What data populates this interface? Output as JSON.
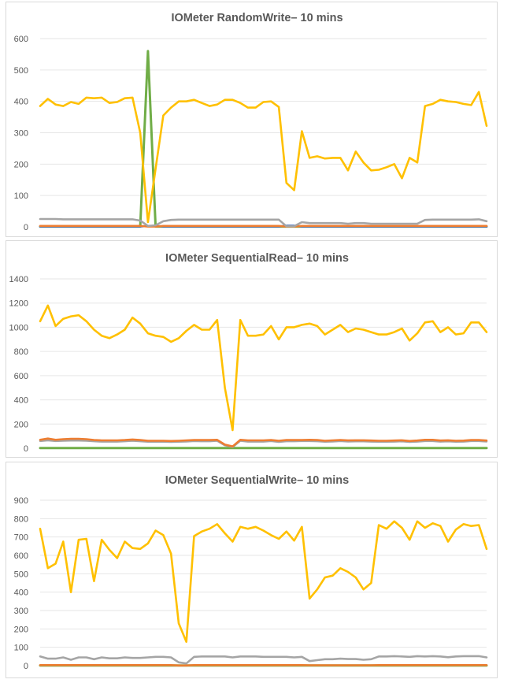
{
  "chart_data": [
    {
      "type": "line",
      "title": "IOMeter RandomWrite– 10 mins",
      "ylim": [
        0,
        600
      ],
      "yticks": [
        0,
        100,
        200,
        300,
        400,
        500,
        600
      ],
      "grid": true,
      "series": [
        {
          "color": "#ffc000",
          "values": [
            385,
            408,
            390,
            385,
            398,
            392,
            412,
            410,
            412,
            395,
            398,
            410,
            412,
            300,
            15,
            185,
            355,
            380,
            400,
            400,
            405,
            395,
            385,
            390,
            405,
            405,
            395,
            380,
            380,
            398,
            400,
            382,
            140,
            117,
            305,
            220,
            225,
            218,
            220,
            220,
            180,
            240,
            205,
            180,
            182,
            190,
            200,
            155,
            220,
            205,
            385,
            392,
            405,
            400,
            398,
            392,
            388,
            430,
            322
          ]
        },
        {
          "color": "#a5a5a5",
          "values": [
            25,
            25,
            25,
            24,
            24,
            24,
            24,
            24,
            24,
            24,
            24,
            24,
            24,
            20,
            3,
            5,
            18,
            22,
            23,
            23,
            23,
            23,
            23,
            23,
            23,
            23,
            23,
            23,
            23,
            23,
            23,
            23,
            2,
            2,
            15,
            12,
            12,
            12,
            12,
            12,
            10,
            12,
            12,
            10,
            10,
            10,
            10,
            10,
            10,
            10,
            22,
            23,
            23,
            23,
            23,
            23,
            23,
            24,
            18
          ]
        },
        {
          "color": "#ed7d31",
          "values": [
            3,
            3,
            3,
            3,
            3,
            3,
            3,
            3,
            3,
            3,
            3,
            3,
            3,
            3,
            1,
            1,
            3,
            3,
            3,
            3,
            3,
            3,
            3,
            3,
            3,
            3,
            3,
            3,
            3,
            3,
            3,
            3,
            1,
            1,
            3,
            3,
            3,
            3,
            3,
            3,
            3,
            3,
            3,
            3,
            3,
            3,
            3,
            3,
            3,
            3,
            3,
            3,
            3,
            3,
            3,
            3,
            3,
            3,
            3
          ]
        },
        {
          "color": "#4472c4",
          "values": [
            1,
            1,
            1,
            1,
            1,
            1,
            1,
            1,
            1,
            1,
            1,
            1,
            1,
            1,
            3,
            3,
            1,
            1,
            1,
            1,
            1,
            1,
            1,
            1,
            1,
            1,
            1,
            1,
            1,
            1,
            1,
            1,
            4,
            4,
            1,
            1,
            1,
            1,
            1,
            1,
            1,
            1,
            1,
            1,
            1,
            1,
            1,
            1,
            1,
            1,
            1,
            1,
            1,
            1,
            1,
            1,
            1,
            1,
            1
          ]
        },
        {
          "color": "#70ad47",
          "values": [
            1,
            1,
            1,
            1,
            1,
            1,
            1,
            1,
            1,
            1,
            1,
            1,
            1,
            1,
            560,
            1,
            1,
            1,
            1,
            1,
            1,
            1,
            1,
            1,
            1,
            1,
            1,
            1,
            1,
            1,
            1,
            1,
            1,
            1,
            1,
            1,
            1,
            1,
            1,
            1,
            1,
            1,
            1,
            1,
            1,
            1,
            1,
            1,
            1,
            1,
            1,
            1,
            1,
            1,
            1,
            1,
            1,
            1,
            1
          ]
        }
      ]
    },
    {
      "type": "line",
      "title": "IOMeter SequentialRead– 10 mins",
      "ylim": [
        0,
        1400
      ],
      "yticks": [
        0,
        200,
        400,
        600,
        800,
        1000,
        1200,
        1400
      ],
      "grid": true,
      "series": [
        {
          "color": "#ffc000",
          "values": [
            1050,
            1180,
            1010,
            1070,
            1090,
            1100,
            1050,
            980,
            930,
            910,
            940,
            980,
            1080,
            1030,
            950,
            930,
            920,
            880,
            910,
            970,
            1020,
            980,
            980,
            1060,
            500,
            150,
            1060,
            930,
            930,
            940,
            1010,
            900,
            1000,
            1000,
            1020,
            1030,
            1010,
            940,
            980,
            1020,
            960,
            990,
            980,
            960,
            940,
            940,
            960,
            990,
            890,
            950,
            1040,
            1050,
            960,
            1000,
            940,
            950,
            1040,
            1040,
            960
          ]
        },
        {
          "color": "#ed7d31",
          "values": [
            70,
            80,
            70,
            75,
            78,
            78,
            75,
            68,
            65,
            65,
            65,
            68,
            72,
            68,
            62,
            62,
            62,
            60,
            62,
            65,
            68,
            68,
            68,
            70,
            30,
            15,
            70,
            65,
            65,
            65,
            68,
            62,
            68,
            68,
            68,
            70,
            68,
            62,
            65,
            68,
            65,
            66,
            66,
            64,
            62,
            62,
            64,
            66,
            60,
            64,
            70,
            70,
            64,
            66,
            62,
            63,
            68,
            68,
            64
          ]
        },
        {
          "color": "#a5a5a5",
          "values": [
            60,
            65,
            60,
            62,
            64,
            64,
            62,
            58,
            55,
            55,
            55,
            58,
            62,
            58,
            54,
            54,
            54,
            52,
            54,
            56,
            60,
            58,
            58,
            62,
            25,
            10,
            62,
            55,
            55,
            55,
            60,
            52,
            58,
            58,
            60,
            60,
            58,
            54,
            56,
            60,
            56,
            57,
            57,
            55,
            54,
            54,
            55,
            57,
            52,
            55,
            60,
            60,
            55,
            57,
            54,
            55,
            60,
            60,
            56
          ]
        },
        {
          "color": "#70ad47",
          "values": [
            1,
            1,
            1,
            1,
            1,
            1,
            1,
            1,
            1,
            1,
            1,
            1,
            1,
            1,
            1,
            1,
            1,
            1,
            1,
            1,
            1,
            1,
            1,
            1,
            1,
            1,
            1,
            1,
            1,
            1,
            1,
            1,
            1,
            1,
            1,
            1,
            1,
            1,
            1,
            1,
            1,
            1,
            1,
            1,
            1,
            1,
            1,
            1,
            1,
            1,
            1,
            1,
            1,
            1,
            1,
            1,
            1,
            1,
            1
          ]
        }
      ]
    },
    {
      "type": "line",
      "title": "IOMeter SequentialWrite– 10 mins",
      "ylim": [
        0,
        900
      ],
      "yticks": [
        0,
        100,
        200,
        300,
        400,
        500,
        600,
        700,
        800,
        900
      ],
      "grid": true,
      "series": [
        {
          "color": "#ffc000",
          "values": [
            745,
            530,
            555,
            675,
            400,
            685,
            690,
            460,
            685,
            630,
            585,
            675,
            640,
            635,
            665,
            735,
            710,
            610,
            230,
            130,
            705,
            730,
            745,
            770,
            720,
            675,
            755,
            745,
            755,
            735,
            710,
            690,
            730,
            680,
            755,
            365,
            415,
            480,
            490,
            530,
            510,
            480,
            415,
            450,
            765,
            745,
            785,
            750,
            685,
            785,
            750,
            775,
            760,
            675,
            740,
            770,
            760,
            765,
            635
          ]
        },
        {
          "color": "#a5a5a5",
          "values": [
            50,
            38,
            38,
            45,
            32,
            45,
            45,
            35,
            45,
            40,
            40,
            45,
            42,
            42,
            45,
            48,
            48,
            45,
            18,
            12,
            48,
            50,
            50,
            50,
            50,
            45,
            50,
            50,
            50,
            48,
            48,
            48,
            48,
            45,
            48,
            25,
            30,
            35,
            35,
            38,
            36,
            36,
            32,
            35,
            50,
            50,
            52,
            50,
            48,
            52,
            50,
            52,
            50,
            46,
            50,
            52,
            52,
            52,
            45
          ]
        },
        {
          "color": "#ed7d31",
          "values": [
            3,
            3,
            3,
            3,
            3,
            3,
            3,
            3,
            3,
            3,
            3,
            3,
            3,
            3,
            3,
            3,
            3,
            3,
            1,
            1,
            3,
            3,
            3,
            3,
            3,
            3,
            3,
            3,
            3,
            3,
            3,
            3,
            3,
            3,
            3,
            2,
            2,
            2,
            2,
            2,
            2,
            2,
            2,
            2,
            3,
            3,
            3,
            3,
            3,
            3,
            3,
            3,
            3,
            3,
            3,
            3,
            3,
            3,
            3
          ]
        },
        {
          "color": "#70ad47",
          "values": [
            1,
            1,
            1,
            1,
            1,
            1,
            1,
            1,
            1,
            1,
            1,
            1,
            1,
            1,
            1,
            1,
            1,
            1,
            1,
            1,
            1,
            1,
            1,
            1,
            1,
            1,
            1,
            1,
            1,
            1,
            1,
            1,
            1,
            1,
            1,
            1,
            1,
            1,
            1,
            1,
            1,
            1,
            1,
            1,
            1,
            1,
            1,
            1,
            1,
            1,
            1,
            1,
            1,
            1,
            1,
            1,
            1,
            1,
            1
          ]
        }
      ]
    }
  ]
}
